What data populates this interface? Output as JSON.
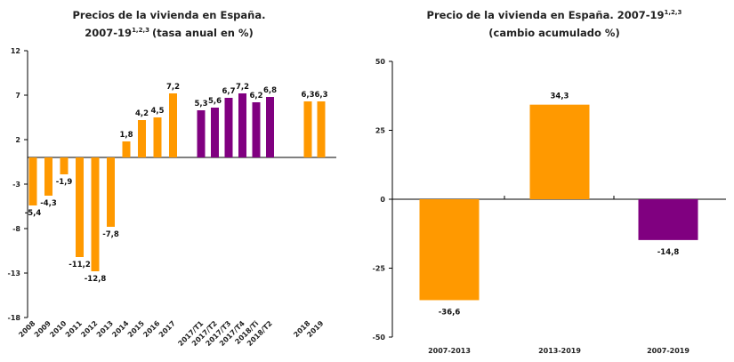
{
  "chart_data": [
    {
      "type": "bar",
      "title_line1": "Precios de la vivienda en España.",
      "title_line2_main": "2007-19",
      "title_line2_sup": "1,2,3",
      "title_line2_tail": "(tasa anual en %)",
      "ylim": [
        -18,
        12
      ],
      "yticks": [
        12,
        7,
        2,
        -3,
        -8,
        -13,
        -18
      ],
      "categories": [
        "2008",
        "2009",
        "2010",
        "2011",
        "2012",
        "2013",
        "2014",
        "2015",
        "2016",
        "2017",
        "2017/T1",
        "2017/T2",
        "2017/T3",
        "2017/T4",
        "2018/T1",
        "2018/T2",
        "2018",
        "2019"
      ],
      "values": [
        -5.4,
        -4.3,
        -1.9,
        -11.2,
        -12.8,
        -7.8,
        1.8,
        4.2,
        4.5,
        7.2,
        5.3,
        5.6,
        6.7,
        7.2,
        6.2,
        6.8,
        6.3,
        6.3
      ],
      "value_labels": [
        "-5,4",
        "-4,3",
        "-1,9",
        "-11,2",
        "-12,8",
        "-7,8",
        "1,8",
        "4,2",
        "4,5",
        "7,2",
        "5,3",
        "5,6",
        "6,7",
        "7,2",
        "6,2",
        "6,8",
        "6,3",
        "6,3"
      ],
      "tick_labels": [
        "2008",
        "2009",
        "2010",
        "2011",
        "2012",
        "2013",
        "2014",
        "2015",
        "2016",
        "2017",
        "2017/T1",
        "2017/T2",
        "2017/T3",
        "2017/T4",
        "2018/Ti",
        "2018/T2",
        "2018",
        "2019"
      ],
      "colors": [
        "#FF9900",
        "#FF9900",
        "#FF9900",
        "#FF9900",
        "#FF9900",
        "#FF9900",
        "#FF9900",
        "#FF9900",
        "#FF9900",
        "#FF9900",
        "#800080",
        "#800080",
        "#800080",
        "#800080",
        "#800080",
        "#800080",
        "#FF9900",
        "#FF9900"
      ],
      "grid": false
    },
    {
      "type": "bar",
      "title_line1_main": "Precio de la vivienda en España. 2007-19",
      "title_line1_sup": "1,2,3",
      "title_line2": "(cambio acumulado %)",
      "ylim": [
        -50,
        50
      ],
      "yticks": [
        50,
        25,
        0,
        -25,
        -50
      ],
      "categories": [
        "2007-2013",
        "2013-2019",
        "2007-2019"
      ],
      "values": [
        -36.6,
        34.3,
        -14.8
      ],
      "value_labels": [
        "-36,6",
        "34,3",
        "-14,8"
      ],
      "colors": [
        "#FF9900",
        "#FF9900",
        "#800080"
      ],
      "grid": false
    }
  ]
}
